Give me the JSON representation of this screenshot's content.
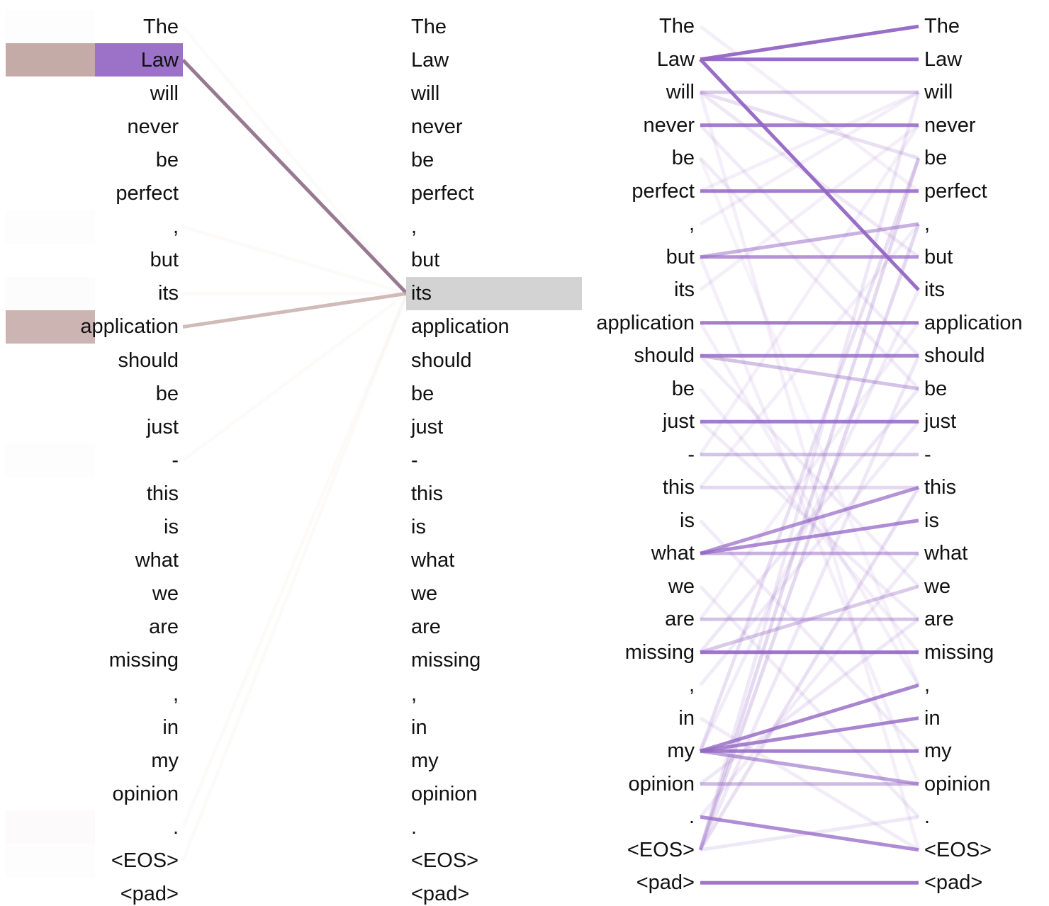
{
  "tokens": [
    "The",
    "Law",
    "will",
    "never",
    "be",
    "perfect",
    ",",
    "but",
    "its",
    "application",
    "should",
    "be",
    "just",
    "-",
    "this",
    "is",
    "what",
    "we",
    "are",
    "missing",
    ",",
    "in",
    "my",
    "opinion",
    ".",
    "<EOS>",
    "<pad>"
  ],
  "left_view": {
    "selected_token_index": 8,
    "attention_from_selected": [
      0.02,
      0.9,
      0.0,
      0.0,
      0.0,
      0.0,
      0.02,
      0.0,
      0.03,
      0.8,
      0.0,
      0.0,
      0.0,
      0.02,
      0.0,
      0.0,
      0.0,
      0.0,
      0.0,
      0.0,
      0.0,
      0.0,
      0.0,
      0.0,
      0.05,
      0.02,
      0.0
    ],
    "colors": {
      "highlight_a": "#9b72c8",
      "highlight_b": "#c4aaa6",
      "line": "#8c6a86",
      "selected_row": "#d3d3d3"
    }
  },
  "right_view": {
    "color": "#9466c4",
    "edges": [
      {
        "from": 1,
        "to": 0,
        "w": 0.95
      },
      {
        "from": 1,
        "to": 1,
        "w": 0.95
      },
      {
        "from": 1,
        "to": 8,
        "w": 0.95
      },
      {
        "from": 2,
        "to": 2,
        "w": 0.35
      },
      {
        "from": 3,
        "to": 3,
        "w": 0.85
      },
      {
        "from": 5,
        "to": 5,
        "w": 0.85
      },
      {
        "from": 7,
        "to": 7,
        "w": 0.7
      },
      {
        "from": 7,
        "to": 6,
        "w": 0.5
      },
      {
        "from": 9,
        "to": 9,
        "w": 0.85
      },
      {
        "from": 10,
        "to": 10,
        "w": 0.8
      },
      {
        "from": 10,
        "to": 11,
        "w": 0.4
      },
      {
        "from": 12,
        "to": 12,
        "w": 0.85
      },
      {
        "from": 13,
        "to": 13,
        "w": 0.4
      },
      {
        "from": 14,
        "to": 14,
        "w": 0.25
      },
      {
        "from": 16,
        "to": 14,
        "w": 0.7
      },
      {
        "from": 16,
        "to": 15,
        "w": 0.75
      },
      {
        "from": 16,
        "to": 16,
        "w": 0.5
      },
      {
        "from": 18,
        "to": 18,
        "w": 0.4
      },
      {
        "from": 19,
        "to": 19,
        "w": 0.9
      },
      {
        "from": 19,
        "to": 17,
        "w": 0.35
      },
      {
        "from": 22,
        "to": 20,
        "w": 0.8
      },
      {
        "from": 22,
        "to": 21,
        "w": 0.8
      },
      {
        "from": 22,
        "to": 22,
        "w": 0.85
      },
      {
        "from": 22,
        "to": 23,
        "w": 0.6
      },
      {
        "from": 23,
        "to": 23,
        "w": 0.45
      },
      {
        "from": 24,
        "to": 25,
        "w": 0.75
      },
      {
        "from": 26,
        "to": 26,
        "w": 0.9
      },
      {
        "from": 25,
        "to": 4,
        "w": 0.25
      },
      {
        "from": 25,
        "to": 6,
        "w": 0.25
      },
      {
        "from": 25,
        "to": 14,
        "w": 0.2
      },
      {
        "from": 22,
        "to": 4,
        "w": 0.2
      },
      {
        "from": 2,
        "to": 4,
        "w": 0.2
      },
      {
        "from": 2,
        "to": 7,
        "w": 0.15
      },
      {
        "from": 0,
        "to": 5,
        "w": 0.1
      },
      {
        "from": 3,
        "to": 10,
        "w": 0.12
      },
      {
        "from": 4,
        "to": 11,
        "w": 0.12
      },
      {
        "from": 6,
        "to": 2,
        "w": 0.1
      },
      {
        "from": 8,
        "to": 3,
        "w": 0.1
      },
      {
        "from": 10,
        "to": 17,
        "w": 0.12
      },
      {
        "from": 11,
        "to": 19,
        "w": 0.1
      },
      {
        "from": 12,
        "to": 18,
        "w": 0.12
      },
      {
        "from": 14,
        "to": 6,
        "w": 0.1
      },
      {
        "from": 15,
        "to": 22,
        "w": 0.12
      },
      {
        "from": 17,
        "to": 24,
        "w": 0.12
      },
      {
        "from": 18,
        "to": 9,
        "w": 0.1
      },
      {
        "from": 20,
        "to": 12,
        "w": 0.12
      },
      {
        "from": 21,
        "to": 25,
        "w": 0.12
      },
      {
        "from": 23,
        "to": 18,
        "w": 0.15
      },
      {
        "from": 24,
        "to": 16,
        "w": 0.12
      },
      {
        "from": 25,
        "to": 10,
        "w": 0.15
      },
      {
        "from": 25,
        "to": 24,
        "w": 0.15
      },
      {
        "from": 9,
        "to": 20,
        "w": 0.1
      },
      {
        "from": 5,
        "to": 2,
        "w": 0.1
      },
      {
        "from": 13,
        "to": 3,
        "w": 0.1
      },
      {
        "from": 19,
        "to": 11,
        "w": 0.15
      },
      {
        "from": 22,
        "to": 8,
        "w": 0.12
      },
      {
        "from": 25,
        "to": 2,
        "w": 0.15
      },
      {
        "from": 2,
        "to": 25,
        "w": 0.1
      },
      {
        "from": 4,
        "to": 20,
        "w": 0.08
      },
      {
        "from": 7,
        "to": 23,
        "w": 0.1
      }
    ]
  }
}
